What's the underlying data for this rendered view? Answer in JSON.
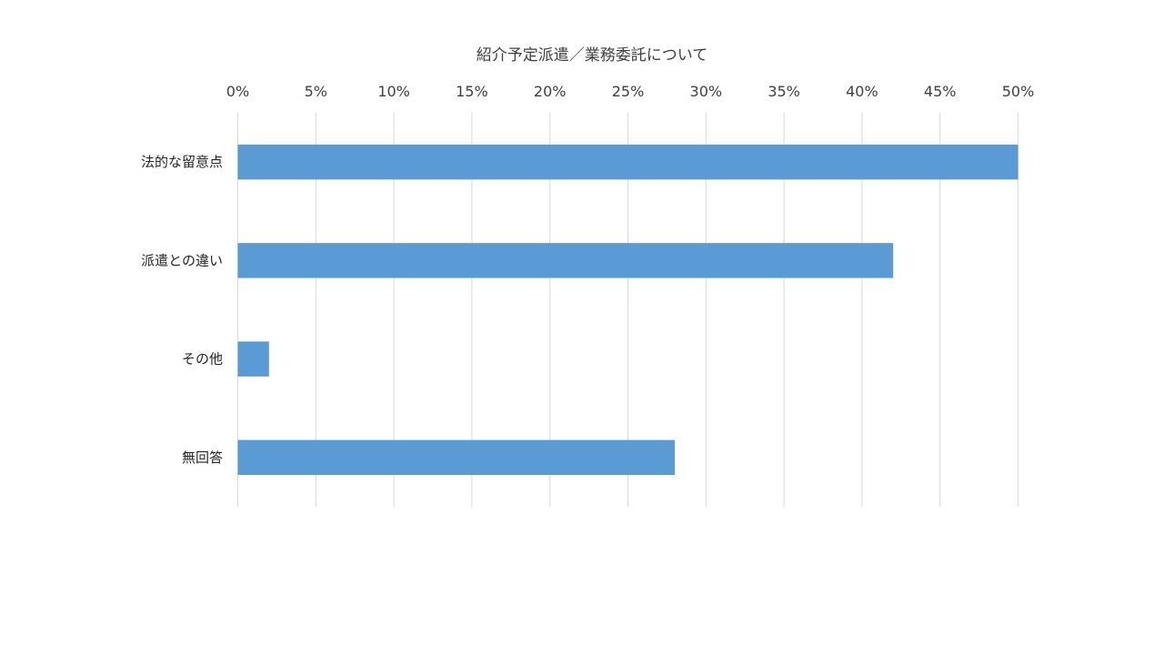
{
  "chart_data": {
    "type": "bar",
    "orientation": "horizontal",
    "title": "紹介予定派遣／業務委託について",
    "categories": [
      "法的な留意点",
      "派遣との違い",
      "その他",
      "無回答"
    ],
    "values": [
      50,
      42,
      2,
      28
    ],
    "unit": "%",
    "xlim": [
      0,
      50
    ],
    "xticks": [
      0,
      5,
      10,
      15,
      20,
      25,
      30,
      35,
      40,
      45,
      50
    ],
    "tick_labels": [
      "0%",
      "5%",
      "10%",
      "15%",
      "20%",
      "25%",
      "30%",
      "35%",
      "40%",
      "45%",
      "50%"
    ],
    "axis_position": "top",
    "grid": true,
    "legend": "none",
    "bar_color": "#5b9bd5"
  }
}
